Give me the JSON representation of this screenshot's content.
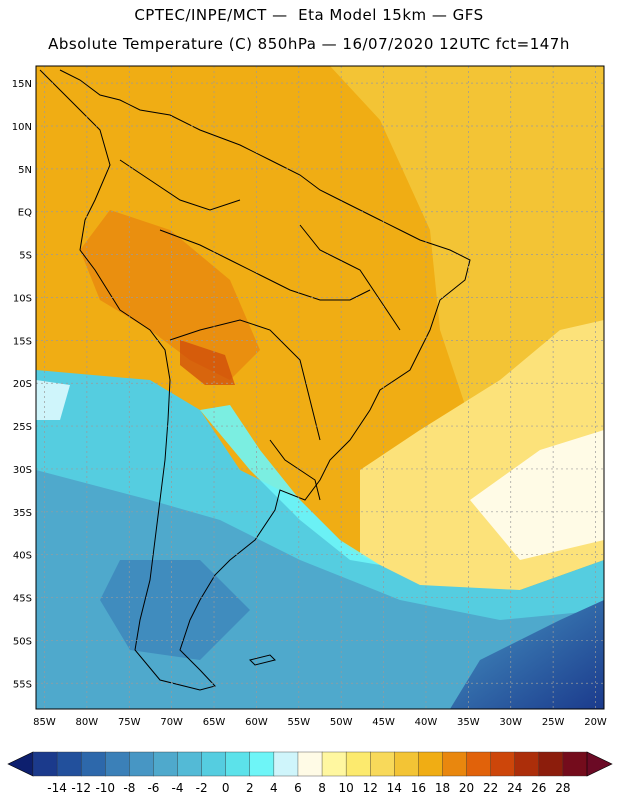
{
  "header": {
    "line1": "CPTEC/INPE/MCT —  Eta Model 15km — GFS",
    "line2": "Absolute Temperature (C) 850hPa — 16/07/2020 12UTC fct=147h"
  },
  "axes": {
    "lon": [
      -85,
      -80,
      -75,
      -70,
      -65,
      -60,
      -55,
      -50,
      -45,
      -40,
      -35,
      -30,
      -25,
      -20
    ],
    "lon_labels": [
      "85W",
      "80W",
      "75W",
      "70W",
      "65W",
      "60W",
      "55W",
      "50W",
      "45W",
      "40W",
      "35W",
      "30W",
      "25W",
      "20W"
    ],
    "lat": [
      15,
      10,
      5,
      0,
      -5,
      -10,
      -15,
      -20,
      -25,
      -30,
      -35,
      -40,
      -45,
      -50,
      -55
    ],
    "lat_labels": [
      "15N",
      "10N",
      "5N",
      "EQ",
      "5S",
      "10S",
      "15S",
      "20S",
      "25S",
      "30S",
      "35S",
      "40S",
      "45S",
      "50S",
      "55S"
    ],
    "lon_range": [
      -86,
      -19
    ],
    "lat_range": [
      17,
      -58
    ],
    "grid": true
  },
  "colorbar": {
    "labels": [
      "-14",
      "-12",
      "-10",
      "-8",
      "-6",
      "-4",
      "-2",
      "0",
      "2",
      "4",
      "6",
      "8",
      "10",
      "12",
      "14",
      "16",
      "18",
      "20",
      "22",
      "24",
      "26",
      "28"
    ],
    "colors": [
      "#1b3a8c",
      "#22509c",
      "#2d68ab",
      "#3b80b8",
      "#4796c4",
      "#4fa9cc",
      "#53bad6",
      "#55cde0",
      "#5ce2ea",
      "#6ef5f7",
      "#cff5fb",
      "#fffbe6",
      "#fff7a0",
      "#fcea6e",
      "#f8d95a",
      "#f3c435",
      "#f0ad14",
      "#e9870e",
      "#e1620a",
      "#cd460a",
      "#ac2e0a",
      "#8c1d0c",
      "#740c1c"
    ],
    "under_color": "#0d1f6e",
    "over_color": "#6b0a25"
  }
}
